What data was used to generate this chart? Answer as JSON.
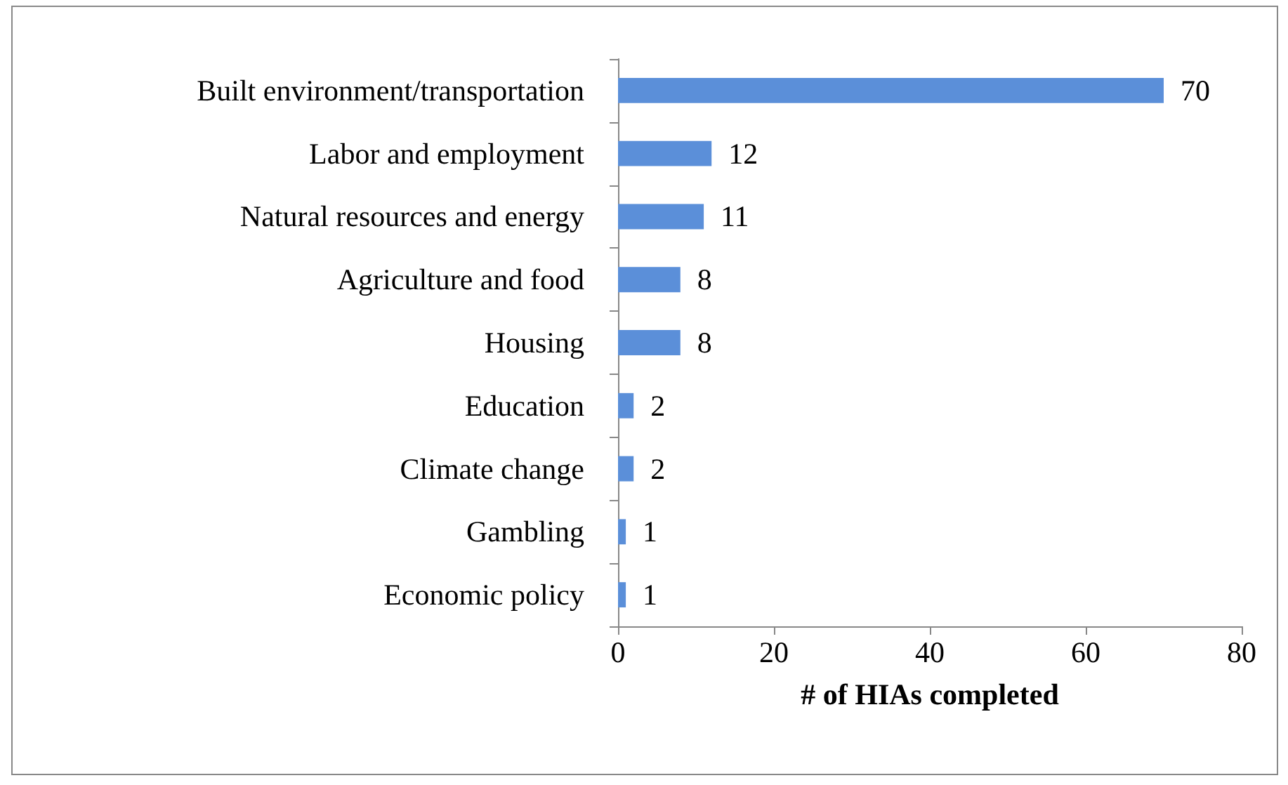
{
  "chart_data": {
    "type": "bar",
    "orientation": "horizontal",
    "xlabel": "# of HIAs completed",
    "categories": [
      "Built environment/transportation",
      "Labor and employment",
      "Natural resources and energy",
      "Agriculture and food",
      "Housing",
      "Education",
      "Climate change",
      "Gambling",
      "Economic policy"
    ],
    "values": [
      70,
      12,
      11,
      8,
      8,
      2,
      2,
      1,
      1
    ],
    "color": "#5b8fd9",
    "xlim": [
      0,
      80
    ],
    "xticks": [
      0,
      20,
      40,
      60,
      80
    ],
    "data_labels": true,
    "grid": false
  }
}
